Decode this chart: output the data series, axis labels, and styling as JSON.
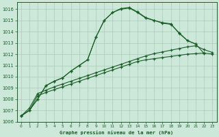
{
  "bg_color": "#cce8d8",
  "grid_color": "#aaccbb",
  "line_color": "#1a5c28",
  "title": "Graphe pression niveau de la mer (hPa)",
  "ylim_min": 1006,
  "ylim_max": 1016,
  "xlim_min": -0.5,
  "xlim_max": 23.5,
  "s1_x": [
    0,
    1,
    2,
    3,
    4,
    5,
    6,
    7,
    8,
    9,
    10,
    11,
    12,
    13,
    14,
    15,
    16,
    17,
    18,
    19,
    20,
    21
  ],
  "s1_y": [
    1006.5,
    1007.0,
    1008.0,
    1009.2,
    1009.6,
    1009.9,
    1010.5,
    1011.0,
    1011.5,
    1013.5,
    1015.0,
    1015.7,
    1016.0,
    1016.1,
    1015.7,
    1015.2,
    1015.0,
    1014.8,
    1014.7,
    1013.85,
    1013.2,
    1012.9
  ],
  "s2_x": [
    0,
    1,
    2,
    3,
    4,
    5,
    6,
    7,
    8,
    9,
    10,
    11,
    12,
    13,
    14,
    15,
    16,
    17,
    18,
    19,
    20,
    21,
    22
  ],
  "s2_y": [
    1006.5,
    1007.0,
    1008.0,
    1009.2,
    1009.6,
    1009.9,
    1010.5,
    1011.0,
    1011.5,
    1013.5,
    1015.0,
    1015.7,
    1016.05,
    1016.15,
    1015.75,
    1015.25,
    1015.0,
    1014.75,
    1014.65,
    1013.9,
    1013.2,
    1012.9,
    1012.05
  ],
  "s3_x": [
    0,
    1,
    2,
    3,
    4,
    5,
    6,
    7,
    8,
    9,
    10,
    11,
    12,
    13,
    14,
    15,
    16,
    17,
    18,
    19,
    20,
    21,
    22,
    23
  ],
  "s3_y": [
    1006.5,
    1007.2,
    1008.5,
    1008.8,
    1009.1,
    1009.35,
    1009.6,
    1009.85,
    1010.1,
    1010.35,
    1010.6,
    1010.85,
    1011.1,
    1011.35,
    1011.6,
    1011.85,
    1012.05,
    1012.2,
    1012.35,
    1012.5,
    1012.65,
    1012.75,
    1012.4,
    1012.15
  ],
  "s4_x": [
    0,
    1,
    2,
    3,
    4,
    5,
    6,
    7,
    8,
    9,
    10,
    11,
    12,
    13,
    14,
    15,
    16,
    17,
    18,
    19,
    20,
    21,
    22,
    23
  ],
  "s4_y": [
    1006.5,
    1007.0,
    1008.3,
    1008.6,
    1008.85,
    1009.1,
    1009.35,
    1009.6,
    1009.85,
    1010.1,
    1010.35,
    1010.6,
    1010.85,
    1011.1,
    1011.35,
    1011.5,
    1011.6,
    1011.7,
    1011.8,
    1011.9,
    1012.0,
    1012.05,
    1012.1,
    1012.0
  ]
}
